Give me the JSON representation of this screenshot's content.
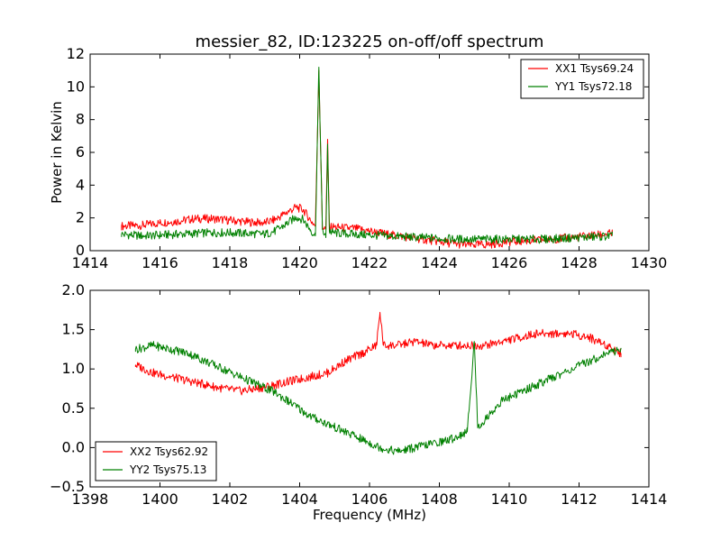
{
  "chart_data": [
    {
      "type": "line",
      "title": "messier_82, ID:123225 on-off/off spectrum",
      "xlabel": "",
      "ylabel": "Power in Kelvin",
      "xlim": [
        1414,
        1430
      ],
      "ylim": [
        0,
        12
      ],
      "x_ticks": [
        "1414",
        "1416",
        "1418",
        "1420",
        "1422",
        "1424",
        "1426",
        "1428",
        "1430"
      ],
      "y_ticks": [
        "0",
        "2",
        "4",
        "6",
        "8",
        "10",
        "12"
      ],
      "grid": false,
      "legend_position": "top-right",
      "series": [
        {
          "name": "XX1 Tsys69.24",
          "color": "#ff0000",
          "x": [
            1414.9,
            1415.5,
            1416,
            1416.5,
            1417,
            1417.5,
            1418,
            1418.5,
            1419,
            1419.3,
            1419.6,
            1419.9,
            1420.1,
            1420.3,
            1420.45,
            1420.55,
            1420.65,
            1420.75,
            1420.8,
            1420.85,
            1420.95,
            1421.2,
            1421.6,
            1422,
            1422.5,
            1423,
            1423.5,
            1424,
            1424.5,
            1425,
            1425.5,
            1426,
            1426.5,
            1427,
            1427.5,
            1428,
            1428.5,
            1428.95
          ],
          "values": [
            1.5,
            1.55,
            1.7,
            1.8,
            1.95,
            1.95,
            1.85,
            1.75,
            1.7,
            1.9,
            2.3,
            2.65,
            2.5,
            1.9,
            1.5,
            11.0,
            1.5,
            1.3,
            6.8,
            1.5,
            1.45,
            1.4,
            1.35,
            1.2,
            1.0,
            0.85,
            0.7,
            0.55,
            0.4,
            0.35,
            0.4,
            0.55,
            0.6,
            0.65,
            0.75,
            0.85,
            0.95,
            1.05
          ]
        },
        {
          "name": "YY1 Tsys72.18",
          "color": "#008000",
          "x": [
            1414.9,
            1415.5,
            1416,
            1416.5,
            1417,
            1417.5,
            1418,
            1418.5,
            1419,
            1419.3,
            1419.6,
            1419.9,
            1420.1,
            1420.3,
            1420.45,
            1420.55,
            1420.65,
            1420.75,
            1420.8,
            1420.85,
            1420.95,
            1421.2,
            1421.6,
            1422,
            1422.5,
            1423,
            1423.5,
            1424,
            1424.5,
            1425,
            1425.5,
            1426,
            1426.5,
            1427,
            1427.5,
            1428,
            1428.5,
            1428.95
          ],
          "values": [
            1.0,
            0.9,
            0.95,
            1.0,
            1.05,
            1.1,
            1.1,
            1.05,
            1.0,
            1.2,
            1.6,
            2.05,
            1.9,
            1.3,
            0.9,
            11.2,
            1.3,
            0.8,
            6.5,
            1.2,
            1.1,
            1.05,
            1.0,
            0.95,
            0.9,
            0.85,
            0.8,
            0.75,
            0.7,
            0.7,
            0.7,
            0.7,
            0.7,
            0.7,
            0.75,
            0.8,
            0.85,
            0.9
          ]
        }
      ]
    },
    {
      "type": "line",
      "title": "",
      "xlabel": "Frequency (MHz)",
      "ylabel": "",
      "xlim": [
        1398,
        1414
      ],
      "ylim": [
        -0.5,
        2.0
      ],
      "x_ticks": [
        "1398",
        "1400",
        "1402",
        "1404",
        "1406",
        "1408",
        "1410",
        "1412",
        "1414"
      ],
      "y_ticks": [
        "−0.5",
        "0.0",
        "0.5",
        "1.0",
        "1.5",
        "2.0"
      ],
      "grid": false,
      "legend_position": "bottom-left",
      "series": [
        {
          "name": "XX2 Tsys62.92",
          "color": "#ff0000",
          "x": [
            1399.3,
            1399.8,
            1400.3,
            1400.8,
            1401.3,
            1401.8,
            1402.3,
            1402.8,
            1403.3,
            1403.8,
            1404.3,
            1404.8,
            1405.3,
            1405.8,
            1406.2,
            1406.3,
            1406.4,
            1406.8,
            1407.3,
            1407.8,
            1408.3,
            1408.8,
            1409.3,
            1409.8,
            1410.3,
            1410.8,
            1411.3,
            1411.8,
            1412.3,
            1412.8,
            1413.2
          ],
          "values": [
            1.05,
            0.95,
            0.9,
            0.85,
            0.8,
            0.75,
            0.72,
            0.75,
            0.8,
            0.85,
            0.9,
            0.95,
            1.1,
            1.2,
            1.3,
            1.72,
            1.3,
            1.3,
            1.35,
            1.3,
            1.3,
            1.3,
            1.3,
            1.35,
            1.4,
            1.45,
            1.45,
            1.45,
            1.4,
            1.3,
            1.2
          ]
        },
        {
          "name": "YY2 Tsys75.13",
          "color": "#008000",
          "x": [
            1399.3,
            1399.8,
            1400.3,
            1400.8,
            1401.3,
            1401.8,
            1402.3,
            1402.8,
            1403.3,
            1403.8,
            1404.3,
            1404.8,
            1405.3,
            1405.8,
            1406.3,
            1406.8,
            1407.3,
            1407.8,
            1408.3,
            1408.8,
            1409.0,
            1409.1,
            1409.2,
            1409.5,
            1409.8,
            1410.3,
            1410.8,
            1411.3,
            1411.8,
            1412.3,
            1412.8,
            1413.2
          ],
          "values": [
            1.25,
            1.3,
            1.25,
            1.2,
            1.1,
            1.0,
            0.9,
            0.8,
            0.7,
            0.55,
            0.4,
            0.3,
            0.2,
            0.1,
            0.0,
            -0.05,
            0.0,
            0.05,
            0.1,
            0.2,
            1.35,
            0.25,
            0.3,
            0.45,
            0.6,
            0.7,
            0.8,
            0.9,
            1.0,
            1.1,
            1.2,
            1.25
          ]
        }
      ]
    }
  ]
}
